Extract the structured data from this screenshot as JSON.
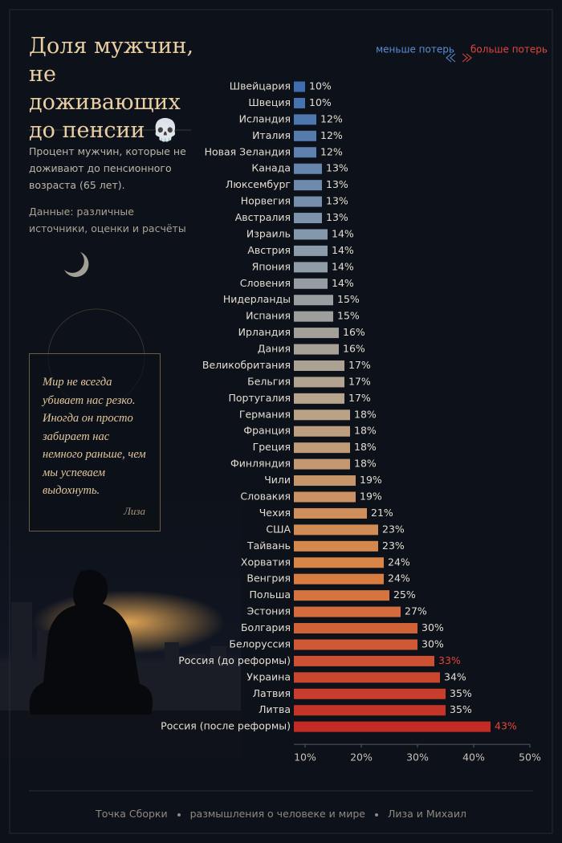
{
  "chart_data": {
    "type": "barh",
    "title": "Доля мужчин, не доживающих до пенсии 💀",
    "subtitle": "Процент мужчин, которые не доживают до пенсионного возраста (65 лет).",
    "source": "Данные: различные источники, оценки и расчёты",
    "quote": "Мир не всегда убивает нас резко. Иногда он просто забирает нас немного раньше, чем мы успеваем выдохнуть.",
    "quote_author": "Лиза",
    "legend_low": "меньше потерь",
    "legend_high": "больше потерь",
    "footer": [
      "Точка Сборки",
      "размышления о человеке и мире",
      "Лиза и Михаил"
    ],
    "categories": [
      "Швейцария",
      "Швеция",
      "Исландия",
      "Италия",
      "Новая Зеландия",
      "Канада",
      "Люксембург",
      "Норвегия",
      "Австралия",
      "Израиль",
      "Австрия",
      "Япония",
      "Словения",
      "Нидерланды",
      "Испания",
      "Ирландия",
      "Дания",
      "Великобритания",
      "Бельгия",
      "Португалия",
      "Германия",
      "Франция",
      "Греция",
      "Финляндия",
      "Чили",
      "Словакия",
      "Чехия",
      "США",
      "Тайвань",
      "Хорватия",
      "Венгрия",
      "Польша",
      "Эстония",
      "Болгария",
      "Белоруссия",
      "Россия (до реформы)",
      "Украина",
      "Латвия",
      "Литва",
      "Россия (после реформы)"
    ],
    "values": [
      10,
      10,
      12,
      12,
      12,
      13,
      13,
      13,
      13,
      14,
      14,
      14,
      14,
      15,
      15,
      16,
      16,
      17,
      17,
      17,
      18,
      18,
      18,
      18,
      19,
      19,
      21,
      23,
      23,
      24,
      24,
      25,
      27,
      30,
      30,
      33,
      34,
      35,
      35,
      43
    ],
    "value_labels": [
      "10%",
      "10%",
      "12%",
      "12%",
      "12%",
      "13%",
      "13%",
      "13%",
      "13%",
      "14%",
      "14%",
      "14%",
      "14%",
      "15%",
      "15%",
      "16%",
      "16%",
      "17%",
      "17%",
      "17%",
      "18%",
      "18%",
      "18%",
      "18%",
      "19%",
      "19%",
      "21%",
      "23%",
      "23%",
      "24%",
      "24%",
      "25%",
      "27%",
      "30%",
      "30%",
      "33%",
      "34%",
      "35%",
      "35%",
      "43%"
    ],
    "color_scale": [
      "#3f6eb0",
      "#8a9bab",
      "#b8a48a",
      "#d98445",
      "#c42b24"
    ],
    "highlight": [
      "Россия (до реформы)",
      "Россия (после реформы)"
    ],
    "highlight_color": "#e8453a",
    "xlim": [
      8,
      50
    ],
    "xticks": [
      {
        "value": 10,
        "label": "10%"
      },
      {
        "value": 20,
        "label": "20%"
      },
      {
        "value": 30,
        "label": "30%"
      },
      {
        "value": 40,
        "label": "40%"
      },
      {
        "value": 50,
        "label": "50%"
      }
    ]
  }
}
